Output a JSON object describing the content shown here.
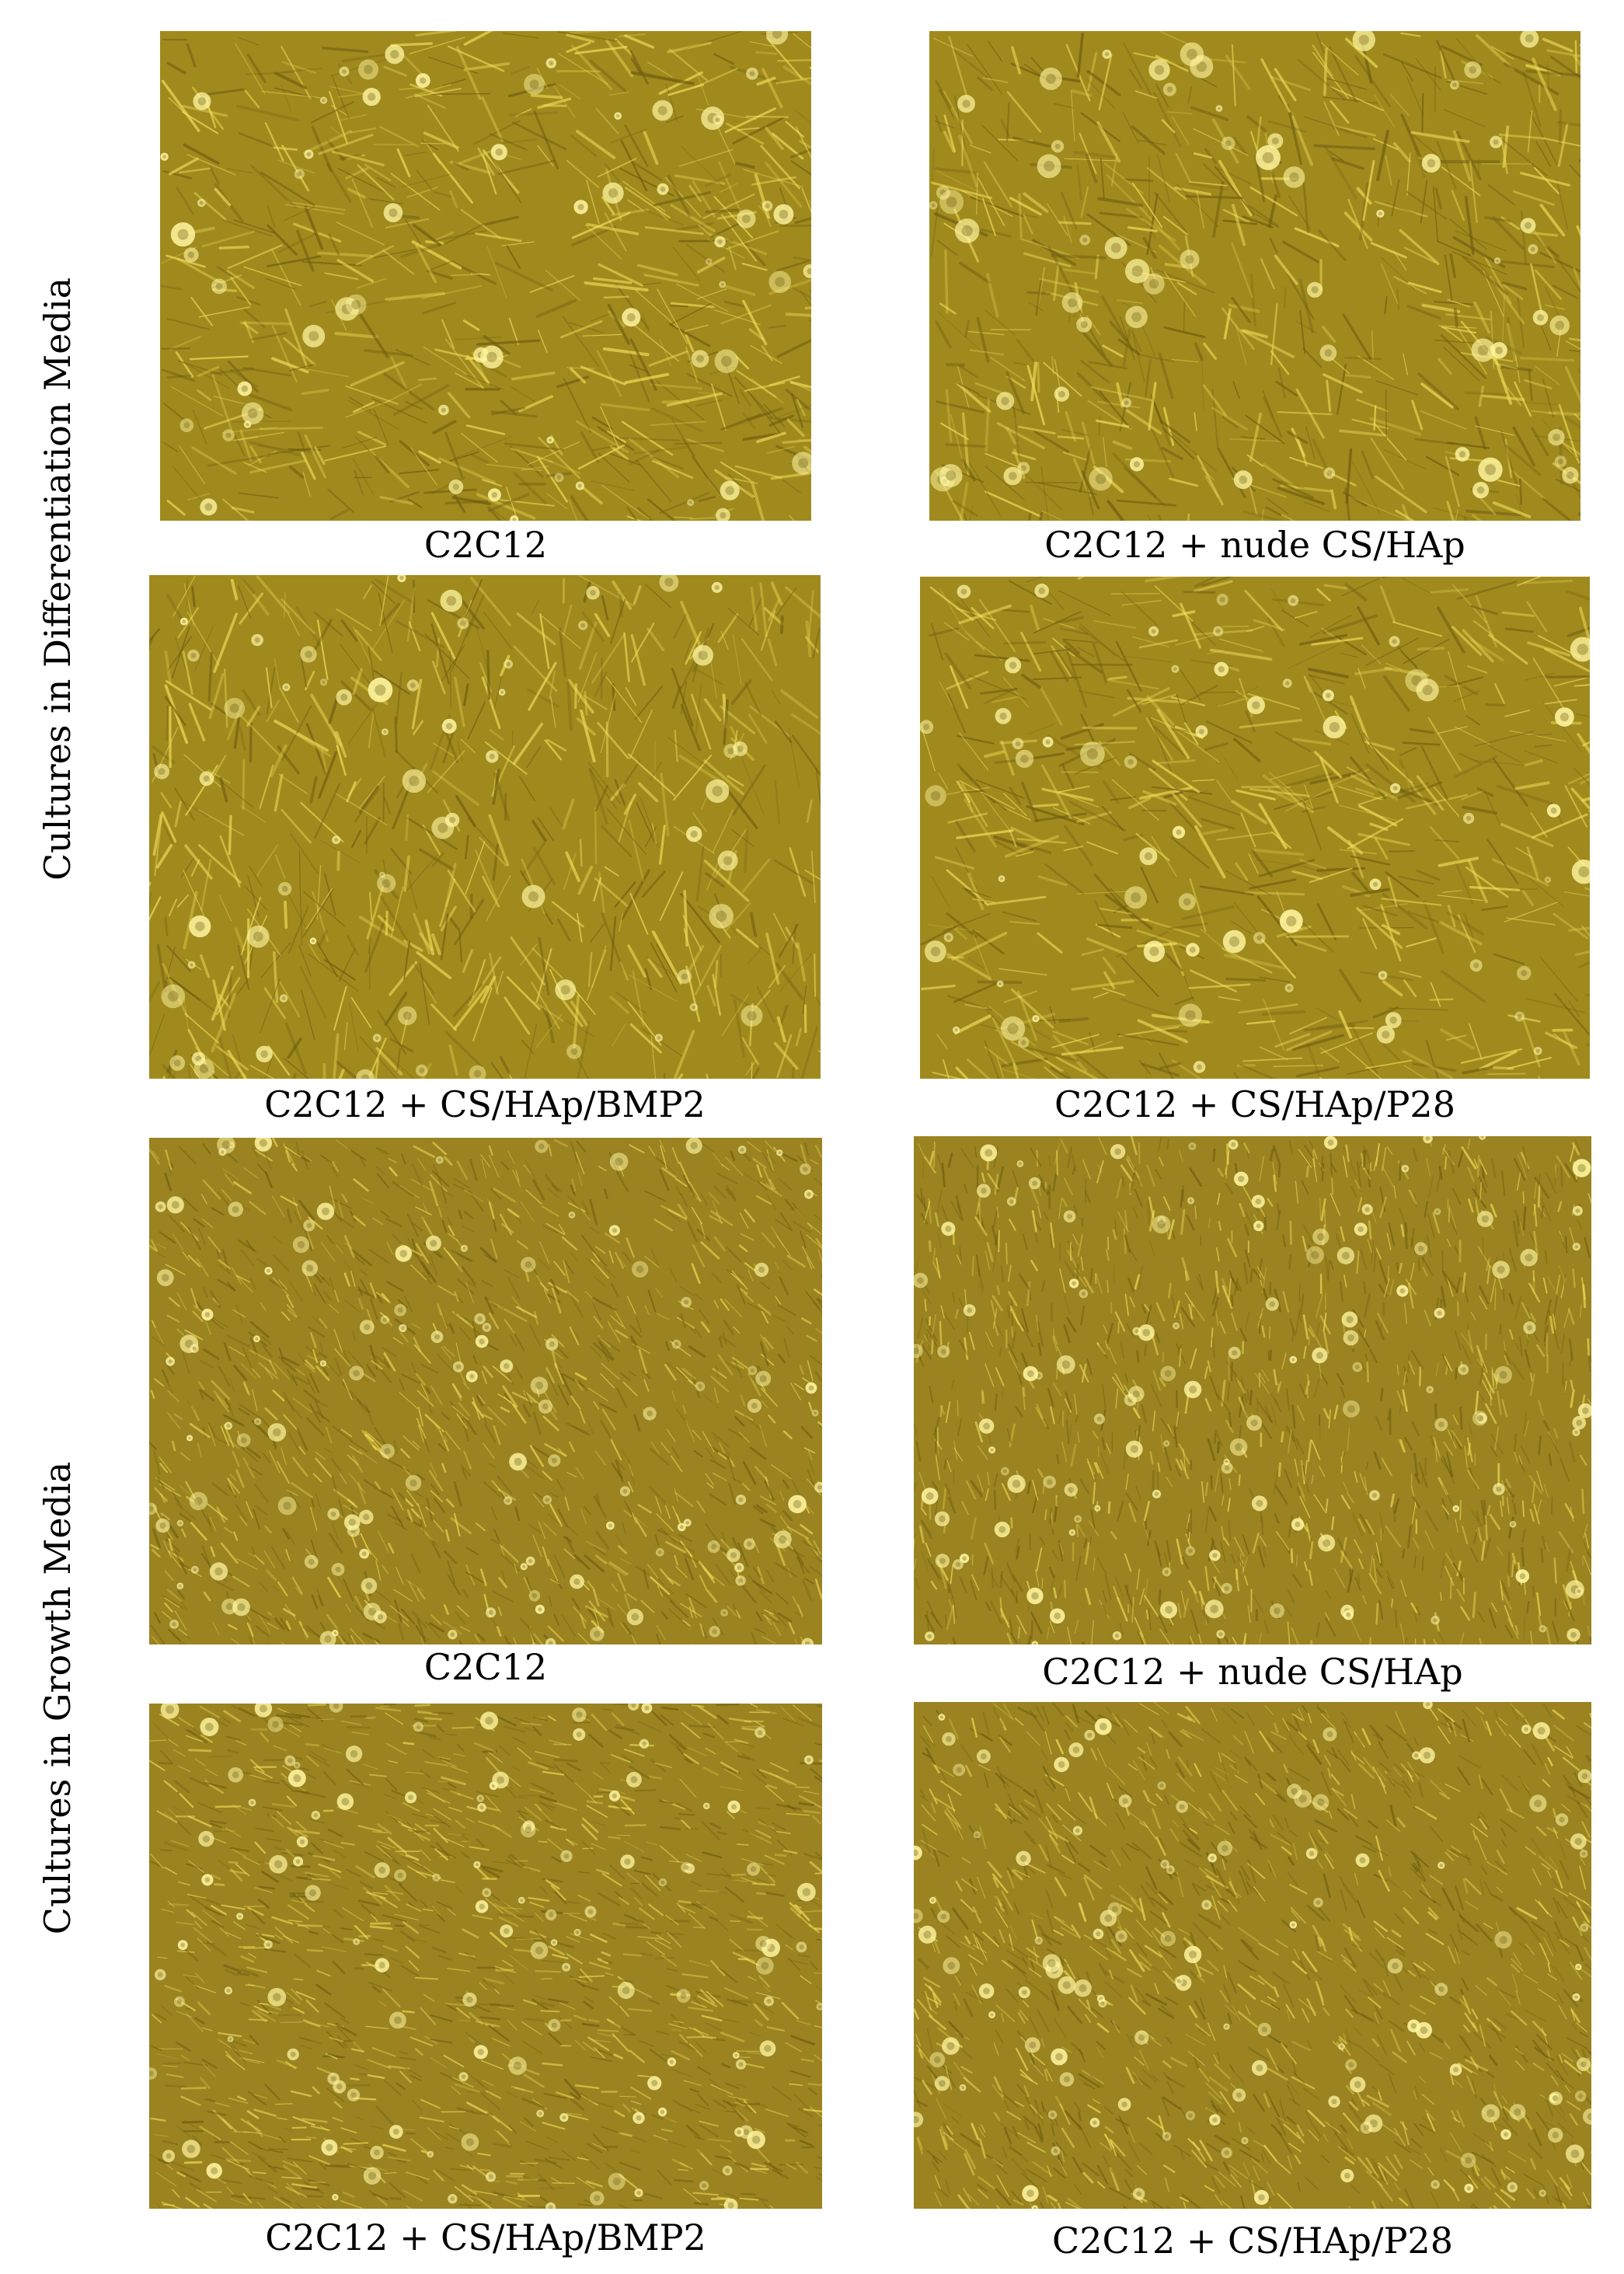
{
  "side_labels": {
    "differentiation": "Cultures in Differentiation Media",
    "growth": "Cultures in Growth Media"
  },
  "panels": [
    {
      "caption": "C2C12"
    },
    {
      "caption": "C2C12 + nude CS/HAp"
    },
    {
      "caption": "C2C12 + CS/HAp/BMP2"
    },
    {
      "caption": "C2C12 + CS/HAp/P28"
    },
    {
      "caption": "C2C12"
    },
    {
      "caption": "C2C12 + nude CS/HAp"
    },
    {
      "caption": "C2C12 + CS/HAp/BMP2"
    },
    {
      "caption": "C2C12 + CS/HAp/P28"
    }
  ],
  "colors": {
    "micrograph_base": "#a08a1e",
    "micrograph_dark": "#6f5d10",
    "micrograph_bright": "#f2df5a"
  }
}
